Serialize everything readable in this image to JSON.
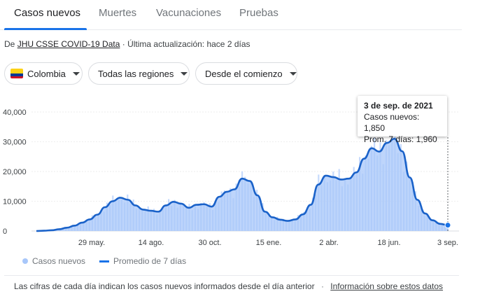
{
  "tabs": [
    {
      "label": "Casos nuevos",
      "active": true
    },
    {
      "label": "Muertes",
      "active": false
    },
    {
      "label": "Vacunaciones",
      "active": false
    },
    {
      "label": "Pruebas",
      "active": false
    }
  ],
  "source": {
    "prefix": "De",
    "link": "JHU CSSE COVID-19 Data",
    "suffix": "· Última actualización: hace 2 días"
  },
  "filters": {
    "country": "Colombia",
    "region": "Todas las regiones",
    "period": "Desde el comienzo"
  },
  "tooltip": {
    "date": "3 de sep. de 2021",
    "cases": "Casos nuevos: 1,850",
    "avg": "Prom. 7 días: 1,960"
  },
  "legend": {
    "bars": "Casos nuevos",
    "line": "Promedio de 7 días"
  },
  "footer": {
    "text": "Las cifras de cada día indican los casos nuevos informados desde el día anterior",
    "link": "Información sobre estos datos"
  },
  "colors": {
    "accent": "#1a73e8",
    "bar": "#a8c7fa",
    "line": "#1a62c9"
  },
  "chart_data": {
    "type": "area",
    "ylim": [
      0,
      40000
    ],
    "y_ticks": [
      "0",
      "10,000",
      "20,000",
      "30,000",
      "40,000"
    ],
    "x_ticks": [
      "29 may.",
      "14 ago.",
      "30 oct.",
      "15 ene.",
      "2 abr.",
      "18 jun.",
      "3 sep."
    ],
    "series": [
      {
        "name": "Promedio de 7 días",
        "values": [
          0,
          100,
          250,
          600,
          1100,
          1800,
          2800,
          3900,
          5500,
          8000,
          10000,
          11200,
          10500,
          8600,
          7200,
          6800,
          6500,
          8600,
          9800,
          9200,
          7800,
          8800,
          9000,
          8200,
          11500,
          13200,
          14000,
          17600,
          16800,
          12000,
          6500,
          4600,
          3800,
          3400,
          3900,
          5600,
          8800,
          15600,
          18600,
          18100,
          17300,
          17600,
          19700,
          24300,
          27800,
          26700,
          29600,
          31000,
          26800,
          18000,
          10500,
          5900,
          3600,
          2400,
          1960
        ]
      }
    ],
    "tooltip_point": {
      "date": "3 de sep. de 2021",
      "cases": 1850,
      "avg": 1960
    }
  }
}
